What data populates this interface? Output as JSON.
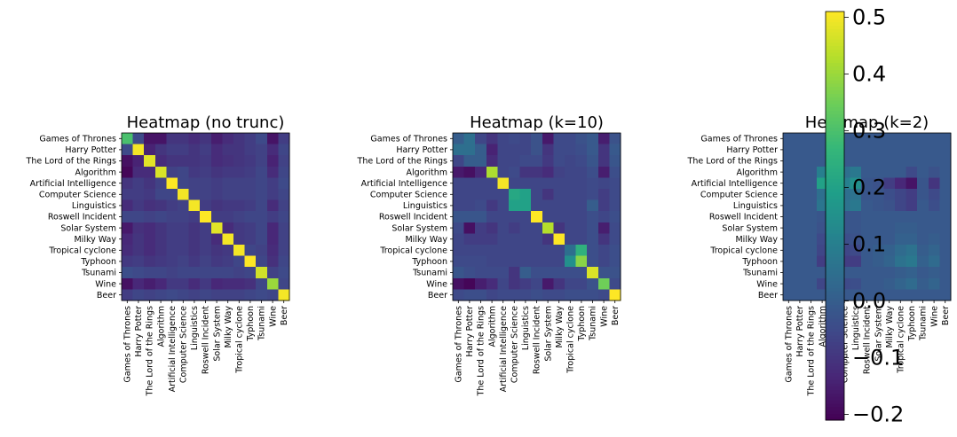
{
  "labels": [
    "Games of Thrones",
    "Harry Potter",
    "The Lord of the Rings",
    "Algorithm",
    "Artificial Intelligence",
    "Computer Science",
    "Linguistics",
    "Roswell Incident",
    "Solar System",
    "Milky Way",
    "Tropical cyclone",
    "Typhoon",
    "Tsunami",
    "Wine",
    "Beer"
  ],
  "colorbar": {
    "vmin": -0.21,
    "vmax": 0.51,
    "ticks": [
      -0.2,
      -0.1,
      0.0,
      0.1,
      0.2,
      0.3,
      0.4,
      0.5
    ],
    "tick_labels": [
      "−0.2",
      "−0.1",
      "0.0",
      "0.1",
      "0.2",
      "0.3",
      "0.4",
      "0.5"
    ]
  },
  "chart_data": [
    {
      "type": "heatmap",
      "title": "Heatmap (no trunc)",
      "matrix": [
        [
          0.3,
          -0.05,
          -0.17,
          -0.17,
          -0.1,
          -0.1,
          -0.12,
          -0.1,
          -0.15,
          -0.12,
          -0.1,
          -0.08,
          -0.05,
          -0.17,
          -0.08
        ],
        [
          -0.05,
          0.5,
          -0.14,
          -0.1,
          -0.08,
          -0.08,
          -0.1,
          -0.08,
          -0.12,
          -0.1,
          -0.1,
          -0.08,
          -0.07,
          -0.12,
          -0.06
        ],
        [
          -0.18,
          -0.14,
          0.48,
          -0.12,
          -0.1,
          -0.1,
          -0.1,
          -0.09,
          -0.12,
          -0.11,
          -0.1,
          -0.09,
          -0.07,
          -0.14,
          -0.07
        ],
        [
          -0.2,
          -0.12,
          -0.12,
          0.47,
          -0.07,
          -0.06,
          -0.09,
          -0.08,
          -0.1,
          -0.09,
          -0.09,
          -0.08,
          -0.06,
          -0.12,
          -0.06
        ],
        [
          -0.1,
          -0.08,
          -0.1,
          -0.07,
          0.51,
          -0.06,
          -0.07,
          -0.07,
          -0.08,
          -0.07,
          -0.07,
          -0.07,
          -0.06,
          -0.08,
          -0.05
        ],
        [
          -0.08,
          -0.08,
          -0.09,
          -0.06,
          -0.06,
          0.5,
          -0.07,
          -0.07,
          -0.08,
          -0.07,
          -0.07,
          -0.07,
          -0.06,
          -0.08,
          -0.06
        ],
        [
          -0.12,
          -0.09,
          -0.11,
          -0.1,
          -0.08,
          -0.07,
          0.5,
          -0.08,
          -0.1,
          -0.09,
          -0.09,
          -0.08,
          -0.06,
          -0.12,
          -0.07
        ],
        [
          -0.06,
          -0.06,
          -0.07,
          -0.06,
          -0.07,
          -0.07,
          -0.08,
          0.51,
          -0.08,
          -0.08,
          -0.07,
          -0.06,
          -0.06,
          -0.08,
          -0.06
        ],
        [
          -0.16,
          -0.11,
          -0.12,
          -0.1,
          -0.08,
          -0.08,
          -0.1,
          -0.08,
          0.48,
          -0.12,
          -0.09,
          -0.08,
          -0.06,
          -0.13,
          -0.07
        ],
        [
          -0.13,
          -0.1,
          -0.12,
          -0.1,
          -0.08,
          -0.08,
          -0.1,
          -0.08,
          -0.12,
          0.5,
          -0.09,
          -0.08,
          -0.06,
          -0.13,
          -0.07
        ],
        [
          -0.12,
          -0.1,
          -0.12,
          -0.1,
          -0.08,
          -0.08,
          -0.1,
          -0.08,
          -0.1,
          -0.09,
          0.5,
          -0.06,
          -0.07,
          -0.12,
          -0.07
        ],
        [
          -0.09,
          -0.08,
          -0.1,
          -0.09,
          -0.08,
          -0.07,
          -0.09,
          -0.07,
          -0.09,
          -0.08,
          -0.06,
          0.51,
          -0.06,
          -0.11,
          -0.06
        ],
        [
          -0.04,
          -0.05,
          -0.06,
          -0.06,
          -0.07,
          -0.06,
          -0.06,
          -0.06,
          -0.06,
          -0.06,
          -0.07,
          -0.06,
          0.46,
          -0.07,
          -0.05
        ],
        [
          -0.18,
          -0.13,
          -0.15,
          -0.13,
          -0.09,
          -0.09,
          -0.12,
          -0.09,
          -0.13,
          -0.12,
          -0.12,
          -0.11,
          -0.06,
          0.4,
          -0.06
        ],
        [
          -0.08,
          -0.06,
          -0.07,
          -0.06,
          -0.05,
          -0.06,
          -0.07,
          -0.06,
          -0.07,
          -0.07,
          -0.07,
          -0.06,
          -0.05,
          -0.06,
          0.5
        ]
      ]
    },
    {
      "type": "heatmap",
      "title": "Heatmap (k=10)",
      "matrix": [
        [
          0.0,
          0.05,
          -0.06,
          -0.1,
          -0.06,
          -0.05,
          -0.06,
          -0.03,
          -0.16,
          -0.05,
          -0.05,
          -0.03,
          -0.01,
          -0.15,
          -0.03
        ],
        [
          0.05,
          0.05,
          0.0,
          -0.14,
          -0.06,
          -0.06,
          -0.06,
          -0.03,
          -0.1,
          -0.05,
          -0.05,
          -0.04,
          -0.01,
          -0.1,
          -0.01
        ],
        [
          -0.06,
          0.0,
          0.0,
          -0.12,
          -0.06,
          -0.06,
          -0.05,
          -0.05,
          -0.09,
          -0.05,
          -0.06,
          -0.05,
          -0.02,
          -0.1,
          -0.02
        ],
        [
          -0.16,
          -0.18,
          -0.13,
          0.42,
          -0.06,
          -0.05,
          -0.1,
          -0.1,
          -0.12,
          -0.07,
          -0.06,
          -0.06,
          -0.04,
          -0.15,
          -0.04
        ],
        [
          -0.06,
          -0.06,
          -0.06,
          -0.06,
          0.5,
          -0.06,
          -0.06,
          -0.06,
          -0.06,
          -0.06,
          -0.06,
          -0.06,
          -0.05,
          -0.06,
          -0.05
        ],
        [
          -0.06,
          -0.06,
          -0.06,
          -0.06,
          -0.06,
          0.22,
          0.2,
          -0.06,
          -0.1,
          -0.06,
          -0.06,
          -0.06,
          -0.05,
          -0.08,
          -0.05
        ],
        [
          -0.06,
          -0.06,
          -0.05,
          -0.09,
          -0.06,
          0.2,
          0.2,
          -0.06,
          -0.06,
          -0.06,
          -0.06,
          -0.06,
          0.0,
          -0.08,
          -0.05
        ],
        [
          -0.02,
          -0.02,
          -0.02,
          -0.06,
          -0.06,
          -0.06,
          -0.06,
          0.51,
          -0.06,
          -0.06,
          -0.06,
          -0.06,
          -0.04,
          -0.06,
          -0.04
        ],
        [
          -0.05,
          -0.18,
          -0.08,
          -0.1,
          -0.06,
          -0.08,
          -0.06,
          -0.06,
          0.43,
          -0.1,
          -0.06,
          -0.06,
          -0.04,
          -0.15,
          -0.05
        ],
        [
          -0.06,
          -0.08,
          -0.08,
          -0.08,
          -0.06,
          -0.06,
          -0.06,
          -0.06,
          -0.1,
          0.51,
          -0.06,
          -0.06,
          -0.04,
          -0.1,
          -0.05
        ],
        [
          -0.06,
          -0.06,
          -0.06,
          -0.06,
          -0.06,
          -0.06,
          -0.06,
          -0.06,
          -0.06,
          -0.06,
          0.05,
          0.25,
          -0.04,
          -0.06,
          -0.04
        ],
        [
          -0.05,
          -0.05,
          -0.05,
          -0.06,
          -0.06,
          -0.06,
          -0.06,
          -0.06,
          -0.06,
          -0.06,
          0.15,
          0.38,
          -0.04,
          -0.06,
          -0.04
        ],
        [
          -0.02,
          -0.04,
          -0.05,
          -0.05,
          -0.05,
          -0.1,
          0.0,
          -0.04,
          -0.04,
          -0.04,
          -0.04,
          -0.04,
          0.47,
          -0.03,
          -0.03
        ],
        [
          -0.18,
          -0.2,
          -0.15,
          -0.12,
          -0.06,
          -0.1,
          -0.08,
          -0.06,
          -0.16,
          -0.1,
          -0.06,
          -0.06,
          -0.03,
          0.35,
          -0.05
        ],
        [
          -0.05,
          -0.04,
          -0.04,
          -0.06,
          -0.05,
          -0.05,
          -0.05,
          -0.04,
          -0.05,
          -0.05,
          -0.04,
          -0.04,
          -0.04,
          -0.05,
          0.51
        ]
      ]
    },
    {
      "type": "heatmap",
      "title": "Heatmap (k=2)",
      "matrix": [
        [
          -0.01,
          -0.01,
          -0.01,
          -0.01,
          -0.01,
          -0.01,
          -0.01,
          -0.01,
          -0.01,
          -0.01,
          -0.01,
          -0.01,
          -0.01,
          -0.01,
          -0.01
        ],
        [
          -0.01,
          -0.01,
          -0.01,
          -0.01,
          -0.01,
          -0.01,
          -0.01,
          -0.01,
          -0.01,
          -0.01,
          -0.01,
          -0.01,
          -0.01,
          -0.01,
          -0.01
        ],
        [
          -0.01,
          -0.01,
          -0.01,
          -0.01,
          -0.01,
          -0.01,
          -0.01,
          -0.01,
          -0.01,
          -0.01,
          -0.01,
          -0.01,
          -0.01,
          -0.01,
          -0.01
        ],
        [
          -0.01,
          -0.01,
          -0.01,
          0.1,
          0.05,
          0.05,
          0.08,
          -0.01,
          -0.01,
          -0.01,
          -0.01,
          -0.05,
          -0.01,
          -0.03,
          -0.01
        ],
        [
          -0.01,
          -0.01,
          -0.01,
          0.2,
          0.15,
          0.1,
          0.15,
          -0.02,
          -0.03,
          -0.08,
          -0.13,
          -0.17,
          -0.02,
          -0.1,
          -0.01
        ],
        [
          -0.01,
          -0.01,
          -0.01,
          0.05,
          0.1,
          0.05,
          0.06,
          -0.02,
          -0.02,
          -0.04,
          -0.06,
          -0.08,
          -0.02,
          -0.05,
          -0.01
        ],
        [
          -0.01,
          -0.01,
          -0.01,
          0.07,
          0.08,
          0.06,
          0.08,
          -0.01,
          -0.02,
          -0.03,
          -0.06,
          -0.08,
          -0.01,
          -0.04,
          -0.01
        ],
        [
          -0.01,
          -0.01,
          -0.01,
          -0.02,
          -0.01,
          -0.02,
          -0.02,
          -0.01,
          -0.01,
          -0.01,
          -0.01,
          -0.01,
          -0.01,
          -0.01,
          -0.01
        ],
        [
          -0.01,
          -0.01,
          -0.01,
          -0.03,
          -0.01,
          -0.02,
          -0.02,
          -0.01,
          -0.01,
          -0.01,
          0.0,
          0.0,
          -0.01,
          -0.01,
          -0.01
        ],
        [
          -0.01,
          -0.01,
          -0.01,
          -0.05,
          -0.03,
          -0.04,
          -0.03,
          -0.01,
          -0.01,
          -0.01,
          0.01,
          0.01,
          -0.01,
          0.0,
          -0.01
        ],
        [
          -0.01,
          -0.01,
          -0.01,
          -0.06,
          -0.04,
          -0.06,
          -0.05,
          -0.01,
          0.0,
          0.01,
          0.04,
          0.06,
          0.0,
          0.02,
          -0.01
        ],
        [
          -0.01,
          -0.01,
          -0.01,
          -0.08,
          -0.07,
          -0.08,
          -0.08,
          -0.01,
          0.0,
          0.02,
          0.06,
          0.08,
          0.01,
          0.04,
          -0.01
        ],
        [
          -0.01,
          -0.01,
          -0.01,
          -0.01,
          -0.01,
          -0.01,
          -0.01,
          -0.01,
          -0.01,
          -0.01,
          0.0,
          0.01,
          -0.01,
          0.0,
          -0.01
        ],
        [
          -0.01,
          -0.01,
          -0.01,
          -0.06,
          -0.03,
          -0.05,
          -0.04,
          -0.01,
          -0.01,
          0.0,
          0.02,
          0.04,
          0.0,
          0.02,
          -0.01
        ],
        [
          -0.01,
          -0.01,
          -0.01,
          -0.01,
          -0.01,
          -0.01,
          -0.01,
          -0.01,
          -0.01,
          -0.01,
          -0.01,
          -0.01,
          -0.01,
          -0.01,
          -0.01
        ]
      ]
    }
  ]
}
